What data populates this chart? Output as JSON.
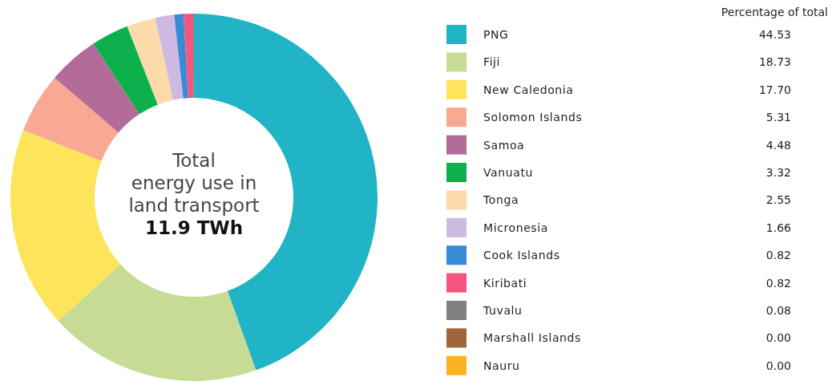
{
  "chart_data": {
    "type": "donut",
    "legend": "right",
    "legend_title": "Percentage of total",
    "annotations": [
      "Total",
      "energy use in",
      "land transport",
      "11.9 TWh"
    ],
    "categories": [
      "PNG",
      "Fiji",
      "New Caledonia",
      "Solomon Islands",
      "Samoa",
      "Vanuatu",
      "Tonga",
      "Micronesia",
      "Cook Islands",
      "Kiribati",
      "Tuvalu",
      "Marshall Islands",
      "Nauru"
    ],
    "values": [
      44.53,
      18.73,
      17.7,
      5.31,
      4.48,
      3.32,
      2.55,
      1.66,
      0.82,
      0.82,
      0.08,
      0.0,
      0.0
    ],
    "value_labels": [
      "44.53",
      "18.73",
      "17.70",
      "5.31",
      "4.48",
      "3.32",
      "2.55",
      "1.66",
      "0.82",
      "0.82",
      "0.08",
      "0.00",
      "0.00"
    ],
    "colors": [
      "#21b4c6",
      "#c6dc95",
      "#fce45b",
      "#f9a893",
      "#b36c98",
      "#0db14b",
      "#fddaa9",
      "#cdbae3",
      "#3a8bd6",
      "#f6567e",
      "#808080",
      "#a0653a",
      "#fbb321"
    ]
  }
}
